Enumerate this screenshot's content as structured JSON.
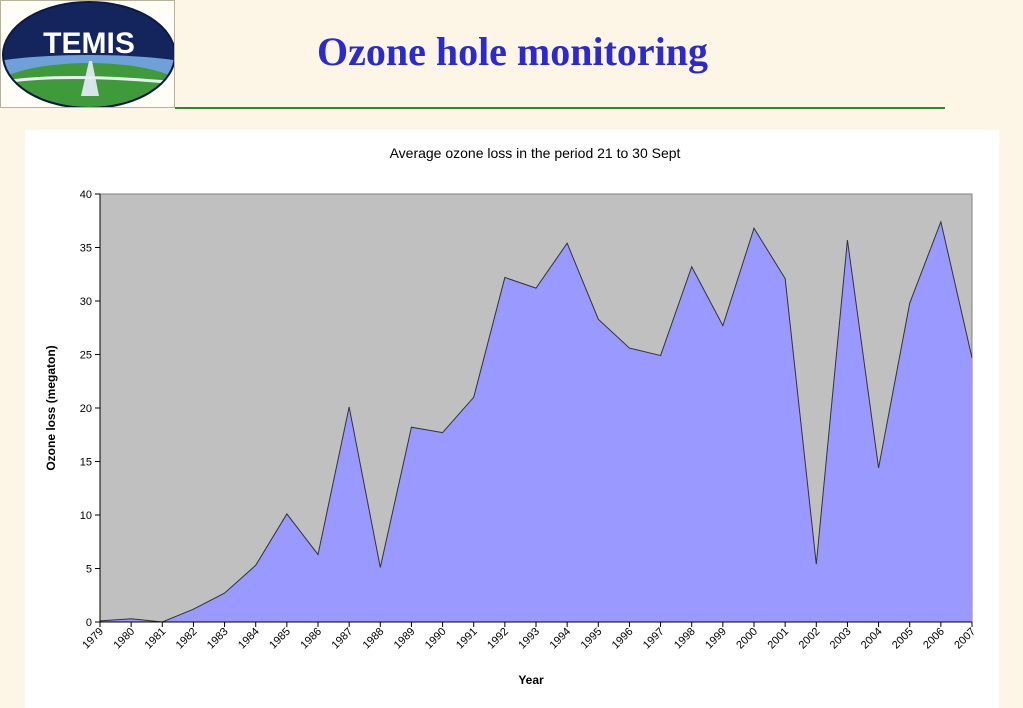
{
  "header": {
    "logo_text": "TEMIS",
    "title": "Ozone hole monitoring"
  },
  "colors": {
    "background": "#fdf5e6",
    "title": "#2a2ad0",
    "rule": "#2c8a2c",
    "plot_bg": "#c0c0c0",
    "area_fill": "#9999ff",
    "area_stroke": "#333333"
  },
  "chart_data": {
    "type": "area",
    "title": "Average ozone loss in the period 21 to 30 Sept",
    "xlabel": "Year",
    "ylabel": "Ozone loss (megaton)",
    "ylim": [
      0,
      40
    ],
    "yticks": [
      0,
      5,
      10,
      15,
      20,
      25,
      30,
      35,
      40
    ],
    "grid": false,
    "legend": "none",
    "categories": [
      "1979",
      "1980",
      "1981",
      "1982",
      "1983",
      "1984",
      "1985",
      "1986",
      "1987",
      "1988",
      "1989",
      "1990",
      "1991",
      "1992",
      "1993",
      "1994",
      "1995",
      "1996",
      "1997",
      "1998",
      "1999",
      "2000",
      "2001",
      "2002",
      "2003",
      "2004",
      "2005",
      "2006",
      "2007"
    ],
    "values": [
      0.1,
      0.3,
      0.0,
      1.2,
      2.7,
      5.3,
      10.1,
      6.3,
      20.1,
      5.1,
      18.2,
      17.7,
      21.0,
      32.2,
      31.2,
      35.4,
      28.3,
      25.6,
      24.9,
      33.2,
      27.7,
      36.8,
      32.1,
      5.4,
      35.7,
      14.4,
      29.8,
      37.4,
      24.7
    ]
  }
}
